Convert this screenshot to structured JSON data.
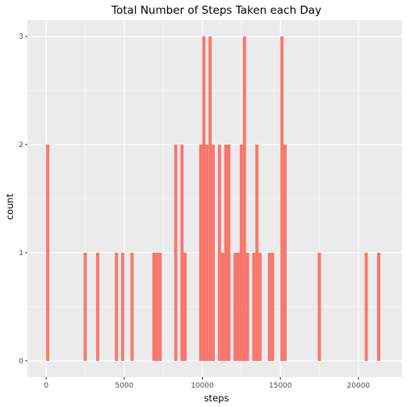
{
  "chart_data": {
    "type": "bar",
    "title": "Total Number of Steps Taken each Day",
    "xlabel": "steps",
    "ylabel": "count",
    "xlim": [
      -1200,
      22800
    ],
    "ylim": [
      -0.15,
      3.15
    ],
    "bin_width": 200,
    "x_ticks": [
      0,
      5000,
      10000,
      15000,
      20000
    ],
    "x_tick_labels": [
      "0",
      "5000",
      "10000",
      "15000",
      "20000"
    ],
    "y_ticks": [
      0,
      1,
      2,
      3
    ],
    "y_tick_labels": [
      "0",
      "1",
      "2",
      "3"
    ],
    "bar_color": "#F8766D",
    "panel_color": "#EBEBEB",
    "grid_color": "#FFFFFF",
    "grid": true,
    "bins": [
      {
        "x": 100,
        "count": 2
      },
      {
        "x": 2500,
        "count": 1
      },
      {
        "x": 3300,
        "count": 1
      },
      {
        "x": 4500,
        "count": 1
      },
      {
        "x": 4900,
        "count": 1
      },
      {
        "x": 5500,
        "count": 1
      },
      {
        "x": 6900,
        "count": 1
      },
      {
        "x": 7100,
        "count": 1
      },
      {
        "x": 7300,
        "count": 1
      },
      {
        "x": 8300,
        "count": 2
      },
      {
        "x": 8700,
        "count": 2
      },
      {
        "x": 8900,
        "count": 1
      },
      {
        "x": 9900,
        "count": 2
      },
      {
        "x": 10100,
        "count": 3
      },
      {
        "x": 10300,
        "count": 2
      },
      {
        "x": 10500,
        "count": 3
      },
      {
        "x": 10700,
        "count": 2
      },
      {
        "x": 11100,
        "count": 2
      },
      {
        "x": 11300,
        "count": 1
      },
      {
        "x": 11500,
        "count": 2
      },
      {
        "x": 11700,
        "count": 2
      },
      {
        "x": 12100,
        "count": 1
      },
      {
        "x": 12300,
        "count": 1
      },
      {
        "x": 12500,
        "count": 2
      },
      {
        "x": 12700,
        "count": 3
      },
      {
        "x": 12900,
        "count": 1
      },
      {
        "x": 13300,
        "count": 1
      },
      {
        "x": 13500,
        "count": 2
      },
      {
        "x": 13700,
        "count": 1
      },
      {
        "x": 14300,
        "count": 1
      },
      {
        "x": 14500,
        "count": 1
      },
      {
        "x": 15100,
        "count": 3
      },
      {
        "x": 15300,
        "count": 2
      },
      {
        "x": 17500,
        "count": 1
      },
      {
        "x": 20500,
        "count": 1
      },
      {
        "x": 21300,
        "count": 1
      }
    ]
  }
}
